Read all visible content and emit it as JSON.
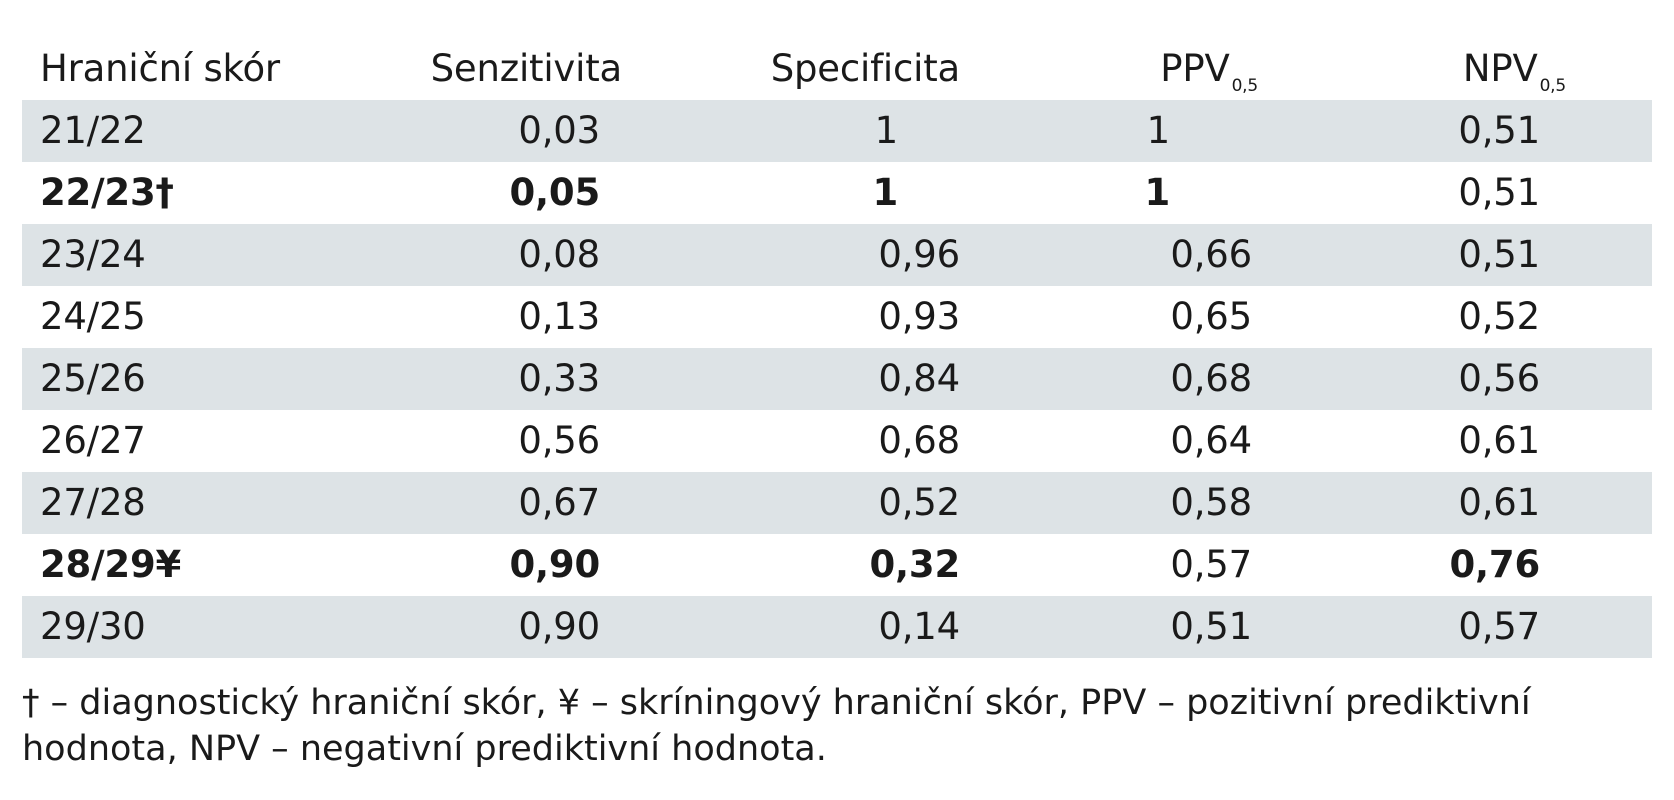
{
  "table": {
    "headers": {
      "col0": "Hraniční skór",
      "col1": "Senzitivita",
      "col2": "Specificita",
      "col3": "PPV",
      "col3_sub": "0,5",
      "col4": "NPV",
      "col4_sub": "0,5"
    },
    "rows": [
      {
        "skor": "21/22",
        "senzitivita": "0,03",
        "specificita": "1",
        "ppv": "1",
        "npv": "0,51"
      },
      {
        "skor": "22/23†",
        "senzitivita": "0,05",
        "specificita": "1",
        "ppv": "1",
        "npv": "0,51"
      },
      {
        "skor": "23/24",
        "senzitivita": "0,08",
        "specificita": "0,96",
        "ppv": "0,66",
        "npv": "0,51"
      },
      {
        "skor": "24/25",
        "senzitivita": "0,13",
        "specificita": "0,93",
        "ppv": "0,65",
        "npv": "0,52"
      },
      {
        "skor": "25/26",
        "senzitivita": "0,33",
        "specificita": "0,84",
        "ppv": "0,68",
        "npv": "0,56"
      },
      {
        "skor": "26/27",
        "senzitivita": "0,56",
        "specificita": "0,68",
        "ppv": "0,64",
        "npv": "0,61"
      },
      {
        "skor": "27/28",
        "senzitivita": "0,67",
        "specificita": "0,52",
        "ppv": "0,58",
        "npv": "0,61"
      },
      {
        "skor": "28/29¥",
        "senzitivita": "0,90",
        "specificita": "0,32",
        "ppv": "0,57",
        "npv": "0,76"
      },
      {
        "skor": "29/30",
        "senzitivita": "0,90",
        "specificita": "0,14",
        "ppv": "0,51",
        "npv": "0,57"
      }
    ]
  },
  "footnote": {
    "line1": "† – diagnostický hraniční skór, ¥  – skríningový hraniční skór, PPV – pozitivní prediktivní",
    "line2": "hodnota, NPV – negativní prediktivní hodnota."
  }
}
